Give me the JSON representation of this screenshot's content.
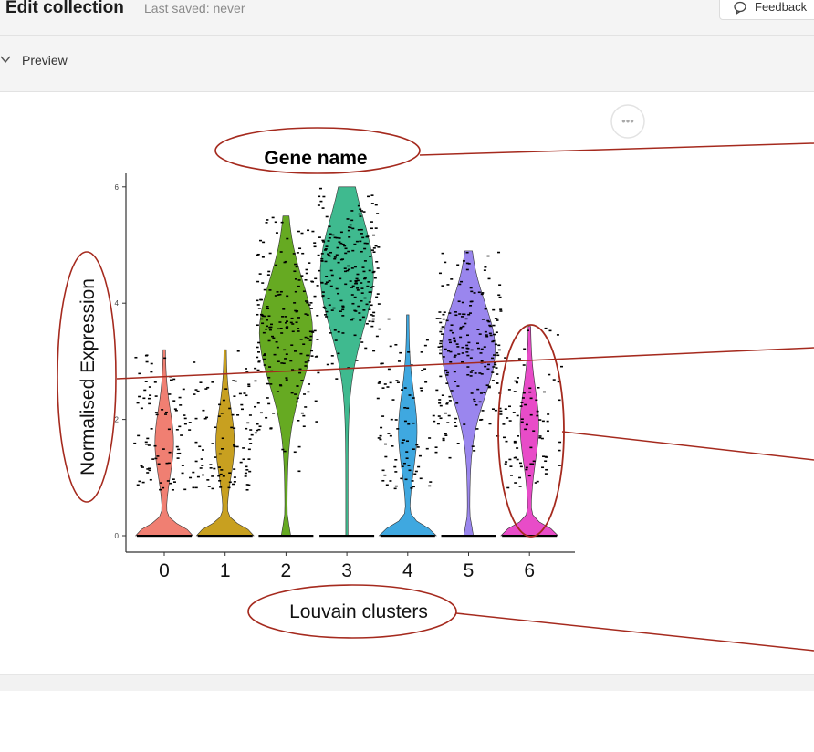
{
  "header": {
    "title": "Edit collection",
    "saved_status": "Last saved: never",
    "feedback_label": "Feedback"
  },
  "preview_section": {
    "label": "Preview"
  },
  "annotations": {
    "gene_name": "Gene name",
    "normalised_expression": "Normalised Expression",
    "louvain_clusters": "Louvain clusters"
  },
  "colors": {
    "annotation_outline": "#a52a1e",
    "cluster_colors": [
      "#f07f72",
      "#c8a020",
      "#66aa22",
      "#3fba8f",
      "#3fa8e0",
      "#9a86ee",
      "#e84cc8"
    ]
  },
  "chart_data": {
    "type": "violin",
    "categories": [
      "0",
      "1",
      "2",
      "3",
      "4",
      "5",
      "6"
    ],
    "y_ticks": [
      "0",
      "2",
      "4",
      "6"
    ],
    "ylim": [
      0,
      6
    ],
    "series": [
      {
        "category": "0",
        "median": 1.6,
        "max": 3.2
      },
      {
        "category": "1",
        "median": 1.6,
        "max": 3.2
      },
      {
        "category": "2",
        "median": 3.5,
        "max": 5.5
      },
      {
        "category": "3",
        "median": 4.5,
        "max": 6.0
      },
      {
        "category": "4",
        "median": 1.8,
        "max": 3.8
      },
      {
        "category": "5",
        "median": 3.2,
        "max": 4.9
      },
      {
        "category": "6",
        "median": 1.9,
        "max": 3.6
      }
    ]
  }
}
